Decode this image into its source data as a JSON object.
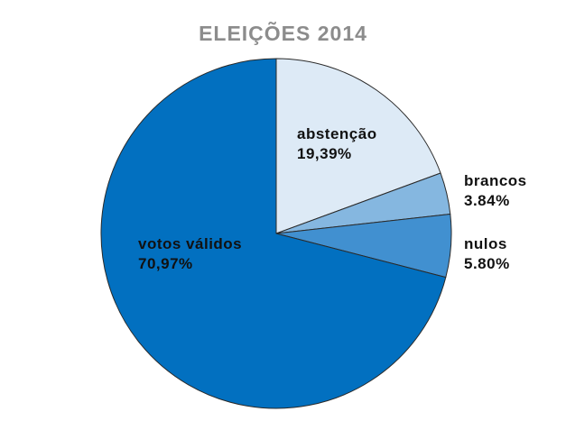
{
  "chart_data": {
    "type": "pie",
    "title": "ELEIÇÕES 2014",
    "title_color": "#8c8c8c",
    "start_angle": "12 o'clock",
    "direction": "clockwise",
    "slices": [
      {
        "label": "abstenção",
        "value": 19.39,
        "value_text": "19,39%",
        "color": "#ddeaf6"
      },
      {
        "label": "brancos",
        "value": 3.84,
        "value_text": "3.84%",
        "color": "#85b7e0"
      },
      {
        "label": "nulos",
        "value": 5.8,
        "value_text": "5.80%",
        "color": "#4190d0"
      },
      {
        "label": "votos válidos",
        "value": 70.97,
        "value_text": "70,97%",
        "color": "#0270c0"
      }
    ],
    "edge_color": "#2a2a2a"
  }
}
